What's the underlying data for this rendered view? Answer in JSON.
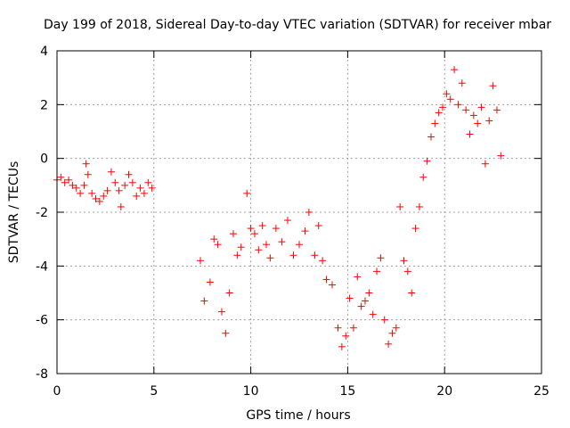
{
  "chart_data": {
    "type": "scatter",
    "title": "Day 199 of 2018, Sidereal Day-to-day VTEC variation (SDTVAR) for receiver mbar",
    "xlabel": "GPS time / hours",
    "ylabel": "SDTVAR / TECUs",
    "xlim": [
      0,
      25
    ],
    "ylim": [
      -8,
      4
    ],
    "xticks": [
      0,
      5,
      10,
      15,
      20,
      25
    ],
    "yticks": [
      -8,
      -6,
      -4,
      -2,
      0,
      2,
      4
    ],
    "xtick_labels": [
      "0",
      "5",
      "10",
      "15",
      "20",
      "25"
    ],
    "ytick_labels": [
      "-8",
      "-6",
      "-4",
      "-2",
      "0",
      "2",
      "4"
    ],
    "grid": true,
    "marker": "plus",
    "series": [
      {
        "name": "SDTVAR",
        "color": "#ff0000",
        "x": [
          0.0,
          0.2,
          0.4,
          0.6,
          0.8,
          1.0,
          1.2,
          1.4,
          1.5,
          1.6,
          1.8,
          2.0,
          2.2,
          2.4,
          2.6,
          2.8,
          3.0,
          3.2,
          3.3,
          3.5,
          3.7,
          3.9,
          4.1,
          4.3,
          4.5,
          4.7,
          4.9,
          7.4,
          7.6,
          7.9,
          8.1,
          8.3,
          8.5,
          8.7,
          8.9,
          9.1,
          9.3,
          9.5,
          9.8,
          10.0,
          10.2,
          10.4,
          10.6,
          10.8,
          11.0,
          11.3,
          11.6,
          11.9,
          12.2,
          12.5,
          12.8,
          13.0,
          13.3,
          13.5,
          13.7,
          13.9,
          14.2,
          14.5,
          14.7,
          14.9,
          15.1,
          15.3,
          15.5,
          15.7,
          15.9,
          16.1,
          16.3,
          16.5,
          16.7,
          16.9,
          17.1,
          17.3,
          17.5,
          17.7,
          17.9,
          18.1,
          18.3,
          18.5,
          18.7,
          18.9,
          19.1,
          19.3,
          19.5,
          19.7,
          19.9,
          20.1,
          20.3,
          20.5,
          20.7,
          20.9,
          21.1,
          21.3,
          21.5,
          21.7,
          21.9,
          22.1,
          22.3,
          22.5,
          22.7,
          22.9
        ],
        "y": [
          -0.8,
          -0.7,
          -0.9,
          -0.8,
          -1.0,
          -1.1,
          -1.3,
          -1.0,
          -0.2,
          -0.6,
          -1.3,
          -1.5,
          -1.6,
          -1.4,
          -1.2,
          -0.5,
          -0.9,
          -1.2,
          -1.8,
          -1.0,
          -0.6,
          -0.9,
          -1.4,
          -1.1,
          -1.3,
          -0.9,
          -1.1,
          -3.8,
          -5.3,
          -4.6,
          -3.0,
          -3.2,
          -5.7,
          -6.5,
          -5.0,
          -2.8,
          -3.6,
          -3.3,
          -1.3,
          -2.6,
          -2.8,
          -3.4,
          -2.5,
          -3.2,
          -3.7,
          -2.6,
          -3.1,
          -2.3,
          -3.6,
          -3.2,
          -2.7,
          -2.0,
          -3.6,
          -2.5,
          -3.8,
          -4.5,
          -4.7,
          -6.3,
          -7.0,
          -6.6,
          -5.2,
          -6.3,
          -4.4,
          -5.5,
          -5.3,
          -5.0,
          -5.8,
          -4.2,
          -3.7,
          -6.0,
          -6.9,
          -6.5,
          -6.3,
          -1.8,
          -3.8,
          -4.2,
          -5.0,
          -2.6,
          -1.8,
          -0.7,
          -0.1,
          0.8,
          1.3,
          1.7,
          1.9,
          2.4,
          2.2,
          3.3,
          2.0,
          2.8,
          1.8,
          0.9,
          1.6,
          1.3,
          1.9,
          -0.2,
          1.4,
          2.7,
          1.8,
          0.1
        ]
      }
    ]
  }
}
